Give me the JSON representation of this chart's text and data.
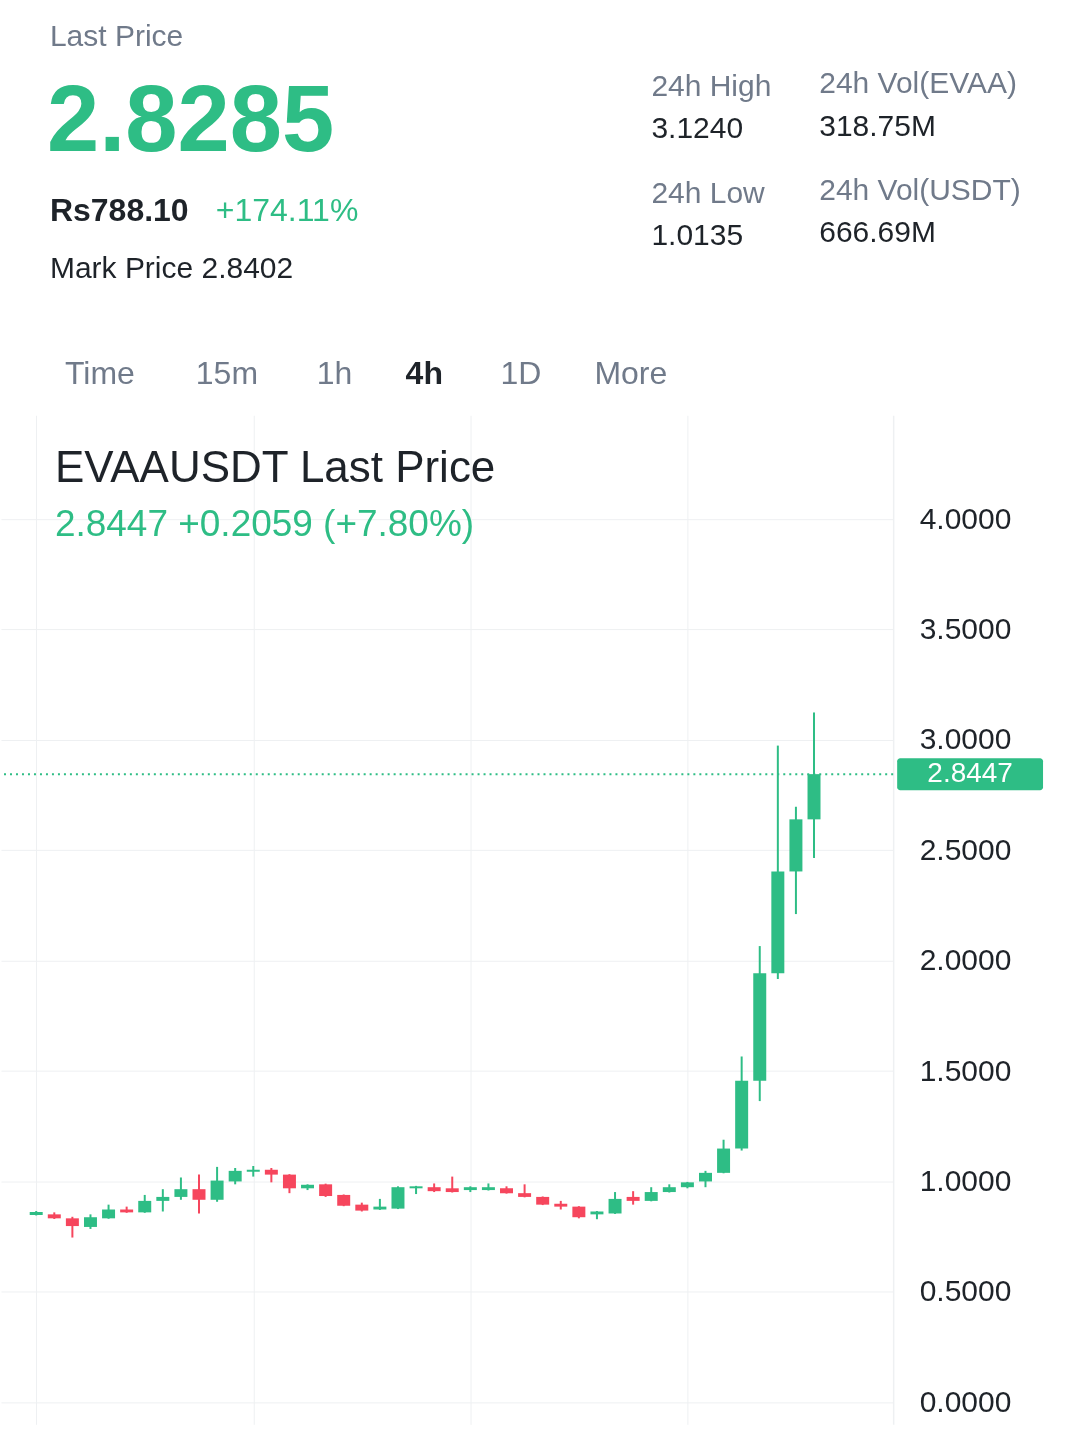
{
  "chart_data": {
    "type": "candlestick",
    "title": "EVAAUSDT Last Price",
    "subtitle": "2.8447  +0.2059 (+7.80%)",
    "categories": [
      null,
      null,
      null,
      null,
      null,
      null,
      null,
      null,
      null,
      null,
      null,
      null,
      null,
      null,
      null,
      null,
      null,
      null,
      null,
      null,
      null,
      null,
      null,
      null,
      null,
      null,
      null,
      null,
      null,
      null,
      null,
      null,
      null,
      null,
      null,
      null,
      null,
      null,
      null,
      null,
      null,
      null,
      null,
      null
    ],
    "ohlc": [
      [
        0.848,
        0.866,
        0.846,
        0.862
      ],
      [
        0.851,
        0.86,
        0.83,
        0.833
      ],
      [
        0.833,
        0.84,
        0.746,
        0.798
      ],
      [
        0.794,
        0.851,
        0.785,
        0.838
      ],
      [
        0.833,
        0.895,
        0.831,
        0.873
      ],
      [
        0.873,
        0.886,
        0.858,
        0.86
      ],
      [
        0.86,
        0.939,
        0.858,
        0.912
      ],
      [
        0.912,
        0.965,
        0.864,
        0.93
      ],
      [
        0.93,
        1.018,
        0.917,
        0.965
      ],
      [
        0.965,
        1.031,
        0.855,
        0.917
      ],
      [
        0.917,
        1.066,
        0.908,
        1.004
      ],
      [
        1.0,
        1.061,
        0.987,
        1.048
      ],
      [
        1.044,
        1.07,
        1.022,
        1.053
      ],
      [
        1.053,
        1.061,
        0.996,
        1.031
      ],
      [
        1.031,
        1.033,
        0.947,
        0.969
      ],
      [
        0.969,
        0.987,
        0.961,
        0.985
      ],
      [
        0.987,
        0.99,
        0.93,
        0.934
      ],
      [
        0.939,
        0.941,
        0.888,
        0.89
      ],
      [
        0.895,
        0.904,
        0.864,
        0.868
      ],
      [
        0.873,
        0.921,
        0.871,
        0.886
      ],
      [
        0.877,
        0.978,
        0.875,
        0.974
      ],
      [
        0.969,
        0.98,
        0.943,
        0.978
      ],
      [
        0.974,
        0.991,
        0.952,
        0.956
      ],
      [
        0.969,
        1.022,
        0.95,
        0.952
      ],
      [
        0.961,
        0.978,
        0.952,
        0.974
      ],
      [
        0.961,
        0.991,
        0.959,
        0.974
      ],
      [
        0.969,
        0.978,
        0.945,
        0.947
      ],
      [
        0.947,
        0.987,
        0.928,
        0.93
      ],
      [
        0.93,
        0.932,
        0.893,
        0.895
      ],
      [
        0.899,
        0.912,
        0.873,
        0.886
      ],
      [
        0.886,
        0.888,
        0.833,
        0.838
      ],
      [
        0.851,
        0.866,
        0.829,
        0.864
      ],
      [
        0.855,
        0.952,
        0.853,
        0.921
      ],
      [
        0.93,
        0.956,
        0.895,
        0.912
      ],
      [
        0.912,
        0.974,
        0.91,
        0.952
      ],
      [
        0.952,
        0.987,
        0.95,
        0.974
      ],
      [
        0.974,
        0.998,
        0.969,
        0.996
      ],
      [
        1.0,
        1.048,
        0.974,
        1.039
      ],
      [
        1.039,
        1.189,
        1.037,
        1.149
      ],
      [
        1.149,
        1.566,
        1.14,
        1.456
      ],
      [
        1.456,
        2.066,
        1.364,
        1.943
      ],
      [
        1.943,
        2.974,
        1.917,
        2.404
      ],
      [
        2.404,
        2.697,
        2.211,
        2.64
      ],
      [
        2.64,
        3.124,
        2.465,
        2.8447
      ]
    ],
    "colors": [
      "#2ebd85",
      "#f6465d",
      "#f6465d",
      "#2ebd85",
      "#2ebd85",
      "#f6465d",
      "#2ebd85",
      "#2ebd85",
      "#2ebd85",
      "#f6465d",
      "#2ebd85",
      "#2ebd85",
      "#2ebd85",
      "#f6465d",
      "#f6465d",
      "#2ebd85",
      "#f6465d",
      "#f6465d",
      "#f6465d",
      "#2ebd85",
      "#2ebd85",
      "#2ebd85",
      "#f6465d",
      "#f6465d",
      "#2ebd85",
      "#2ebd85",
      "#f6465d",
      "#f6465d",
      "#f6465d",
      "#f6465d",
      "#f6465d",
      "#2ebd85",
      "#2ebd85",
      "#f6465d",
      "#2ebd85",
      "#2ebd85",
      "#2ebd85",
      "#2ebd85",
      "#2ebd85",
      "#2ebd85",
      "#2ebd85",
      "#2ebd85",
      "#2ebd85",
      "#2ebd85"
    ],
    "ylim": [
      -0.1,
      4.47
    ],
    "yticks": [
      {
        "value": 0,
        "label": "0.0000"
      },
      {
        "value": 0.5,
        "label": "0.5000"
      },
      {
        "value": 1,
        "label": "1.0000"
      },
      {
        "value": 1.5,
        "label": "1.5000"
      },
      {
        "value": 2,
        "label": "2.0000"
      },
      {
        "value": 2.5,
        "label": "2.5000"
      },
      {
        "value": 3,
        "label": "3.0000"
      },
      {
        "value": 3.5,
        "label": "3.5000"
      },
      {
        "value": 4,
        "label": "4.0000"
      }
    ],
    "grid": true,
    "tick_labels": "y",
    "ref_lines": [
      {
        "axis": "y",
        "value": 2.8447,
        "label": "2.8447",
        "color": "#2ebd85",
        "line_style": "dotted"
      }
    ],
    "annotations": [
      "Last Price",
      "2.8285",
      "Rs788.10",
      "+174.11%",
      "Mark Price 2.8402",
      "24h High",
      "3.1240",
      "24h Vol(EVAA)",
      "318.75M",
      "24h Low",
      "1.0135",
      "24h Vol(USDT)",
      "666.69M",
      "Time",
      "15m",
      "1h",
      "4h",
      "1D",
      "More"
    ]
  }
}
